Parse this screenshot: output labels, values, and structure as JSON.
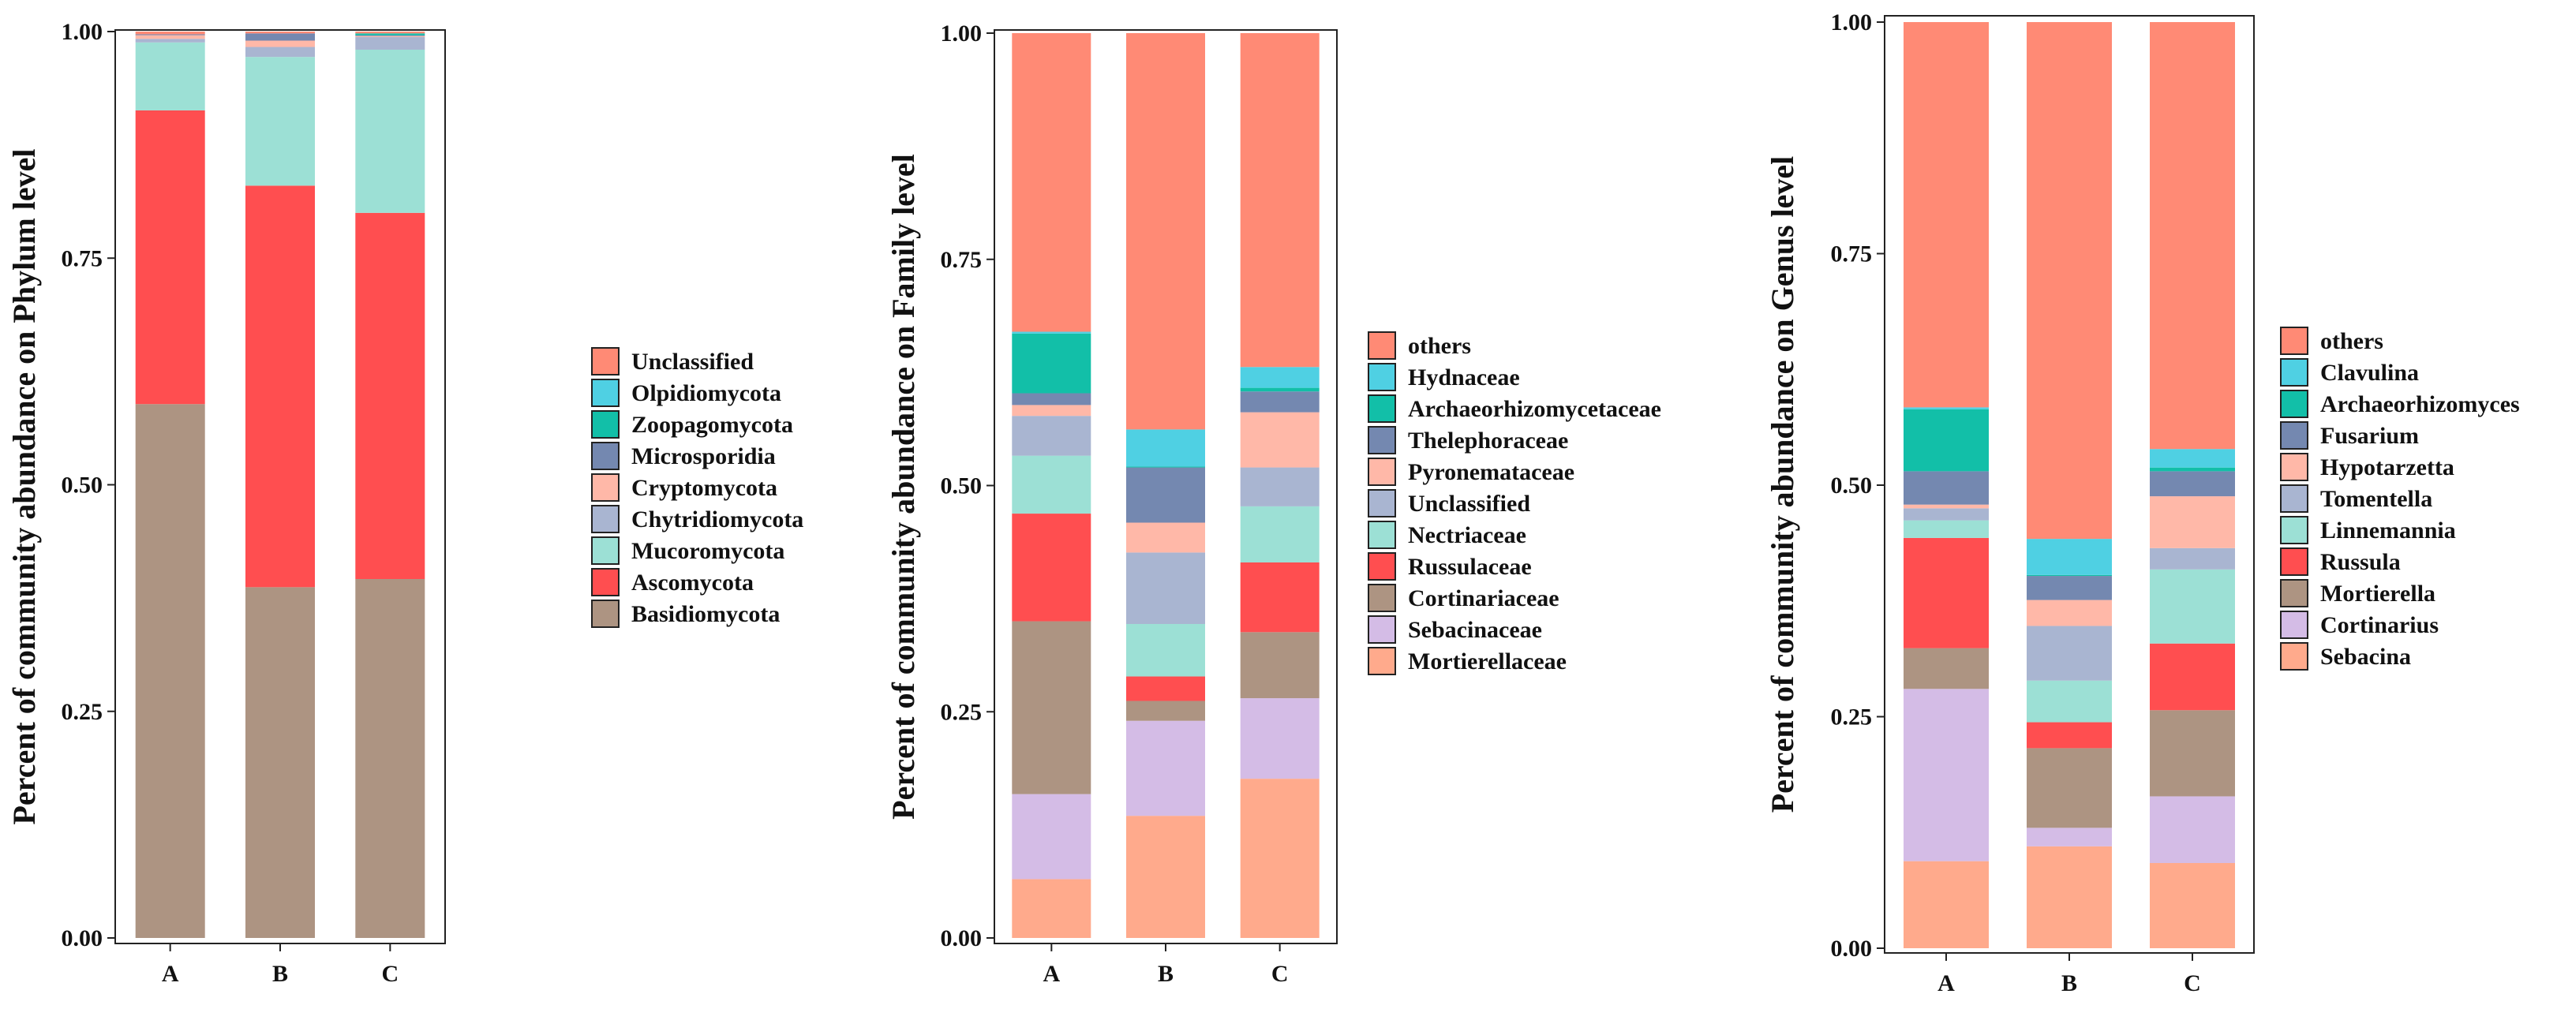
{
  "colors": {
    "salmon": "#FF8A75",
    "cyan": "#4FD0E3",
    "teal": "#12BFA8",
    "slate": "#7488B0",
    "peach": "#FFB8A8",
    "lavender_gray": "#A9B5D1",
    "mint": "#9CE0D5",
    "red": "#FF4E50",
    "taupe": "#AD9482",
    "lilac": "#D4BCE6",
    "light_salmon": "#FFAA8C"
  },
  "chart_data": [
    {
      "type": "bar",
      "stacked": true,
      "categories": [
        "A",
        "B",
        "C"
      ],
      "ylabel": "Percent of community abundance on Phylum level",
      "ylim": [
        0,
        1
      ],
      "yticks": [
        "0.00",
        "0.25",
        "0.50",
        "0.75",
        "1.00"
      ],
      "legend_position": "right",
      "series": [
        {
          "name": "Basidiomycota",
          "color": "#AD9482",
          "values": [
            0.589,
            0.387,
            0.396
          ]
        },
        {
          "name": "Ascomycota",
          "color": "#FF4E50",
          "values": [
            0.324,
            0.443,
            0.404
          ]
        },
        {
          "name": "Mucoromycota",
          "color": "#9CE0D5",
          "values": [
            0.075,
            0.142,
            0.18
          ]
        },
        {
          "name": "Chytridiomycota",
          "color": "#A9B5D1",
          "values": [
            0.004,
            0.011,
            0.014
          ]
        },
        {
          "name": "Cryptomycota",
          "color": "#FFB8A8",
          "values": [
            0.004,
            0.007,
            0.001
          ]
        },
        {
          "name": "Microsporidia",
          "color": "#7488B0",
          "values": [
            0.001,
            0.008,
            0.001
          ]
        },
        {
          "name": "Zoopagomycota",
          "color": "#12BFA8",
          "values": [
            0.0,
            0.0,
            0.002
          ]
        },
        {
          "name": "Olpidiomycota",
          "color": "#4FD0E3",
          "values": [
            0.0,
            0.0,
            0.0
          ]
        },
        {
          "name": "Unclassified",
          "color": "#FF8A75",
          "values": [
            0.003,
            0.002,
            0.002
          ]
        }
      ]
    },
    {
      "type": "bar",
      "stacked": true,
      "categories": [
        "A",
        "B",
        "C"
      ],
      "ylabel": "Percent of community abundance on Family level",
      "ylim": [
        0,
        1
      ],
      "yticks": [
        "0.00",
        "0.25",
        "0.50",
        "0.75",
        "1.00"
      ],
      "legend_position": "right",
      "series": [
        {
          "name": "Mortierellaceae",
          "color": "#FFAA8C",
          "values": [
            0.065,
            0.135,
            0.176
          ]
        },
        {
          "name": "Sebacinaceae",
          "color": "#D4BCE6",
          "values": [
            0.094,
            0.105,
            0.089
          ]
        },
        {
          "name": "Cortinariaceae",
          "color": "#AD9482",
          "values": [
            0.191,
            0.022,
            0.073
          ]
        },
        {
          "name": "Russulaceae",
          "color": "#FF4E50",
          "values": [
            0.119,
            0.027,
            0.077
          ]
        },
        {
          "name": "Nectriaceae",
          "color": "#9CE0D5",
          "values": [
            0.064,
            0.058,
            0.062
          ]
        },
        {
          "name": "Unclassified",
          "color": "#A9B5D1",
          "values": [
            0.044,
            0.079,
            0.043
          ]
        },
        {
          "name": "Pyronemataceae",
          "color": "#FFB8A8",
          "values": [
            0.012,
            0.033,
            0.061
          ]
        },
        {
          "name": "Thelephoraceae",
          "color": "#7488B0",
          "values": [
            0.013,
            0.061,
            0.023
          ]
        },
        {
          "name": "Archaeorhizomycetaceae",
          "color": "#12BFA8",
          "values": [
            0.066,
            0.001,
            0.004
          ]
        },
        {
          "name": "Hydnaceae",
          "color": "#4FD0E3",
          "values": [
            0.002,
            0.041,
            0.023
          ]
        },
        {
          "name": "others",
          "color": "#FF8A75",
          "values": [
            0.33,
            0.438,
            0.369
          ]
        }
      ]
    },
    {
      "type": "bar",
      "stacked": true,
      "categories": [
        "A",
        "B",
        "C"
      ],
      "ylabel": "Percent of community abundance on Genus level",
      "ylim": [
        0,
        1
      ],
      "yticks": [
        "0.00",
        "0.25",
        "0.50",
        "0.75",
        "1.00"
      ],
      "legend_position": "right",
      "series": [
        {
          "name": "Sebacina",
          "color": "#FFAA8C",
          "values": [
            0.094,
            0.11,
            0.092
          ]
        },
        {
          "name": "Cortinarius",
          "color": "#D4BCE6",
          "values": [
            0.186,
            0.02,
            0.072
          ]
        },
        {
          "name": "Mortierella",
          "color": "#AD9482",
          "values": [
            0.044,
            0.086,
            0.093
          ]
        },
        {
          "name": "Russula",
          "color": "#FF4E50",
          "values": [
            0.119,
            0.028,
            0.072
          ]
        },
        {
          "name": "Linnemannia",
          "color": "#9CE0D5",
          "values": [
            0.019,
            0.045,
            0.08
          ]
        },
        {
          "name": "Tomentella",
          "color": "#A9B5D1",
          "values": [
            0.013,
            0.059,
            0.023
          ]
        },
        {
          "name": "Hypotarzetta",
          "color": "#FFB8A8",
          "values": [
            0.004,
            0.028,
            0.056
          ]
        },
        {
          "name": "Fusarium",
          "color": "#7488B0",
          "values": [
            0.036,
            0.026,
            0.027
          ]
        },
        {
          "name": "Archaeorhizomyces",
          "color": "#12BFA8",
          "values": [
            0.067,
            0.001,
            0.004
          ]
        },
        {
          "name": "Clavulina",
          "color": "#4FD0E3",
          "values": [
            0.002,
            0.039,
            0.02
          ]
        },
        {
          "name": "others",
          "color": "#FF8A75",
          "values": [
            0.416,
            0.558,
            0.461
          ]
        }
      ]
    }
  ]
}
